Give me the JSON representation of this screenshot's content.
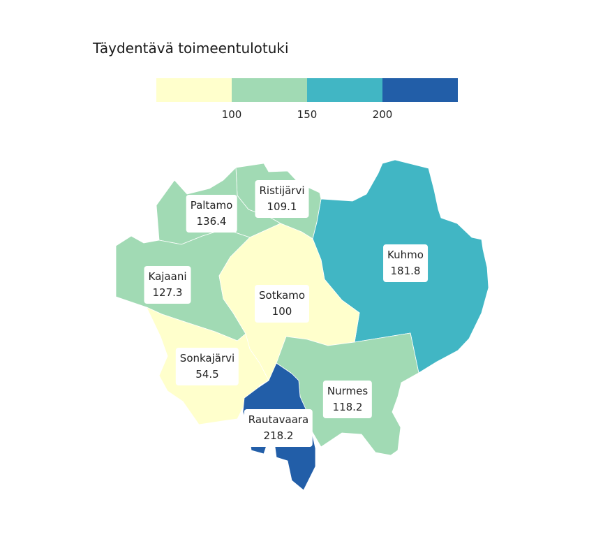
{
  "title": "Täydentävä toimeentulotuki",
  "legend": {
    "colors": [
      "#ffffcc",
      "#a1dab4",
      "#41b6c4",
      "#225ea8"
    ],
    "ticks": [
      "100",
      "150",
      "200"
    ]
  },
  "regions": [
    {
      "name": "Ristijärvi",
      "value": "109.1",
      "color": "#a1dab4"
    },
    {
      "name": "Paltamo",
      "value": "136.4",
      "color": "#a1dab4"
    },
    {
      "name": "Kajaani",
      "value": "127.3",
      "color": "#a1dab4"
    },
    {
      "name": "Kuhmo",
      "value": "181.8",
      "color": "#41b6c4"
    },
    {
      "name": "Sotkamo",
      "value": "100",
      "color": "#ffffcc"
    },
    {
      "name": "Sonkajärvi",
      "value": "54.5",
      "color": "#ffffcc"
    },
    {
      "name": "Nurmes",
      "value": "118.2",
      "color": "#a1dab4"
    },
    {
      "name": "Rautavaara",
      "value": "218.2",
      "color": "#225ea8"
    }
  ]
}
